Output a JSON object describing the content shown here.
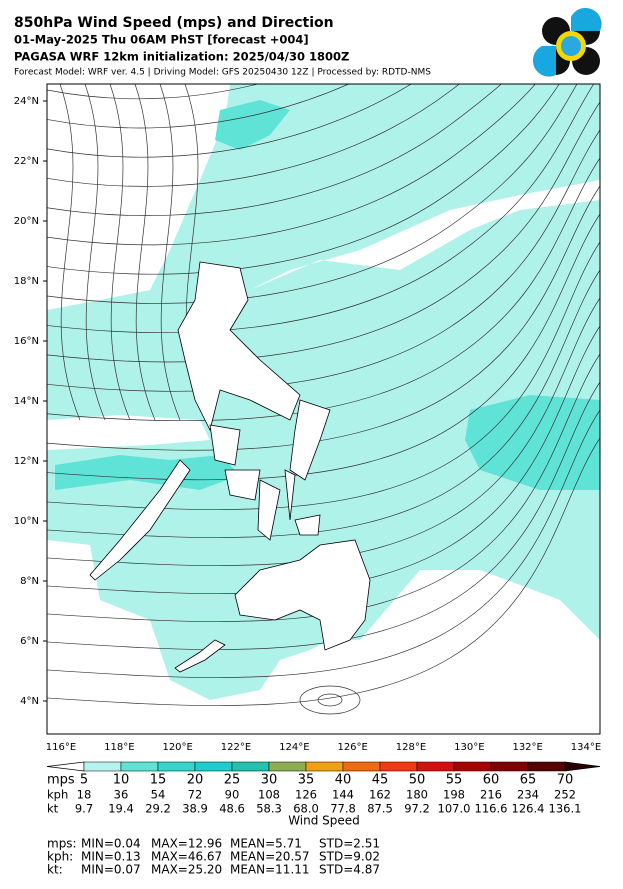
{
  "header": {
    "title": "850hPa Wind Speed (mps) and Direction",
    "valid_time": "01-May-2025 Thu 06AM PhST [forecast +004]",
    "initialization": "PAGASA WRF 12km initialization: 2025/04/30 1800Z",
    "credits": "Forecast Model: WRF ver. 4.5 | Driving Model: GFS 20250430 12Z | Processed by: RDTD-NMS"
  },
  "map": {
    "lat_labels": [
      "24°N",
      "22°N",
      "20°N",
      "18°N",
      "16°N",
      "14°N",
      "12°N",
      "10°N",
      "8°N",
      "6°N",
      "4°N"
    ],
    "lon_labels": [
      "116°E",
      "118°E",
      "120°E",
      "122°E",
      "124°E",
      "126°E",
      "128°E",
      "130°E",
      "132°E",
      "134°E"
    ]
  },
  "colorbar": {
    "title": "Wind Speed",
    "colors": [
      "#b4f4ec",
      "#5ee3d6",
      "#33d6cc",
      "#1ccfcf",
      "#22c2ae",
      "#8cad52",
      "#f2a010",
      "#f26a10",
      "#f03a10",
      "#d41010",
      "#aa0000",
      "#7e0000",
      "#560000",
      "#2a0000"
    ],
    "rows": [
      {
        "unit": "mps",
        "values": [
          5,
          10,
          15,
          20,
          25,
          30,
          35,
          40,
          45,
          50,
          55,
          60,
          65,
          70
        ]
      },
      {
        "unit": "kph",
        "values": [
          18,
          36,
          54,
          72,
          90,
          108,
          126,
          144,
          162,
          180,
          198,
          216,
          234,
          252
        ]
      },
      {
        "unit": "kt",
        "values": [
          "9.7",
          "19.4",
          "29.2",
          "38.9",
          "48.6",
          "58.3",
          "68.0",
          "77.8",
          "87.5",
          "97.2",
          "107.0",
          "116.6",
          "126.4",
          "136.1"
        ]
      }
    ]
  },
  "stats": [
    {
      "unit": "mps:",
      "min": "MIN=0.04",
      "max": "MAX=12.96",
      "mean": "MEAN=5.71",
      "std": "STD=2.51"
    },
    {
      "unit": "kph:",
      "min": "MIN=0.13",
      "max": "MAX=46.67",
      "mean": "MEAN=20.57",
      "std": "STD=9.02"
    },
    {
      "unit": "kt:",
      "min": "MIN=0.07",
      "max": "MAX=25.20",
      "mean": "MEAN=11.11",
      "std": "STD=4.87"
    }
  ]
}
